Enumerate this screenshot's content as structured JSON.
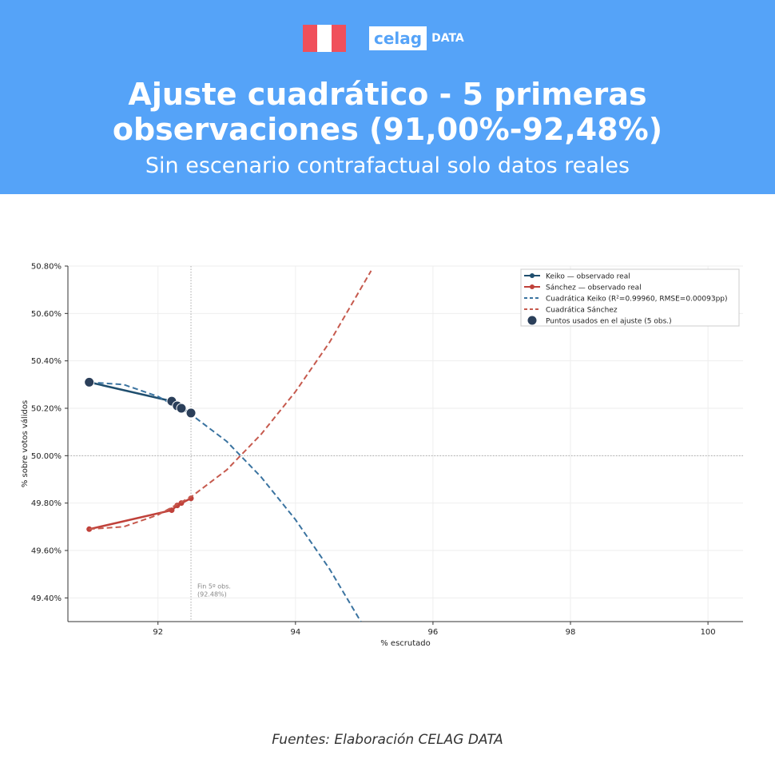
{
  "header": {
    "logo_text": "celag",
    "logo_tag": "DATA",
    "title": "Ajuste cuadrático - 5 primeras observaciones (91,00%-92,48%)",
    "subtitle": "Sin escenario contrafactual solo datos reales"
  },
  "footer": "Fuentes: Elaboración CELAG DATA",
  "chart_data": {
    "type": "line",
    "x_label": "% escrutado",
    "y_label": "% sobre votos válidos",
    "xlim": [
      90.69,
      100.51
    ],
    "ylim": [
      49.3,
      50.8
    ],
    "xticks": [
      92,
      94,
      96,
      98,
      100
    ],
    "yticks": [
      {
        "value": 49.4,
        "label": "49.40%"
      },
      {
        "value": 49.6,
        "label": "49.60%"
      },
      {
        "value": 49.8,
        "label": "49.80%"
      },
      {
        "value": 50.0,
        "label": "50.00%"
      },
      {
        "value": 50.2,
        "label": "50.20%"
      },
      {
        "value": 50.4,
        "label": "50.40%"
      },
      {
        "value": 50.6,
        "label": "50.60%"
      },
      {
        "value": 50.8,
        "label": "50.80%"
      }
    ],
    "grid": true,
    "legend": "upper right",
    "hline": 50.0,
    "annotation": {
      "x": 92.48,
      "text": [
        "Fin 5º obs.",
        "(92.48%)"
      ]
    },
    "series": [
      {
        "name": "Keiko — observado real",
        "color": "#1f4e6e",
        "style": "solid-marker",
        "x": [
          91.0,
          92.2,
          92.28,
          92.34,
          92.48
        ],
        "values": [
          50.31,
          50.23,
          50.21,
          50.2,
          50.18
        ]
      },
      {
        "name": "Sánchez — observado real",
        "color": "#c0413a",
        "style": "solid-marker",
        "x": [
          91.0,
          92.2,
          92.28,
          92.34,
          92.48
        ],
        "values": [
          49.69,
          49.77,
          49.79,
          49.8,
          49.82
        ]
      },
      {
        "name": "Cuadrática Keiko (R²=0.99960, RMSE=0.00093pp)",
        "color": "#3a73a0",
        "style": "dashed",
        "x": [
          91.0,
          91.5,
          92.0,
          92.5,
          93.0,
          93.5,
          94.0,
          94.5,
          94.95
        ],
        "values": [
          50.31,
          50.3,
          50.25,
          50.17,
          50.06,
          49.91,
          49.73,
          49.52,
          49.3
        ]
      },
      {
        "name": "Cuadrática Sánchez",
        "color": "#c65a4e",
        "style": "dashed",
        "x": [
          91.0,
          91.5,
          92.0,
          92.5,
          93.0,
          93.5,
          94.0,
          94.5,
          95.1
        ],
        "values": [
          49.69,
          49.7,
          49.75,
          49.83,
          49.94,
          50.09,
          50.27,
          50.48,
          50.78
        ]
      },
      {
        "name": "Puntos usados en el ajuste (5 obs.)",
        "color": "#2b3f5a",
        "style": "scatter",
        "x": [
          91.0,
          92.2,
          92.28,
          92.34,
          92.48
        ],
        "values": [
          50.31,
          50.23,
          50.21,
          50.2,
          50.18
        ]
      }
    ]
  }
}
